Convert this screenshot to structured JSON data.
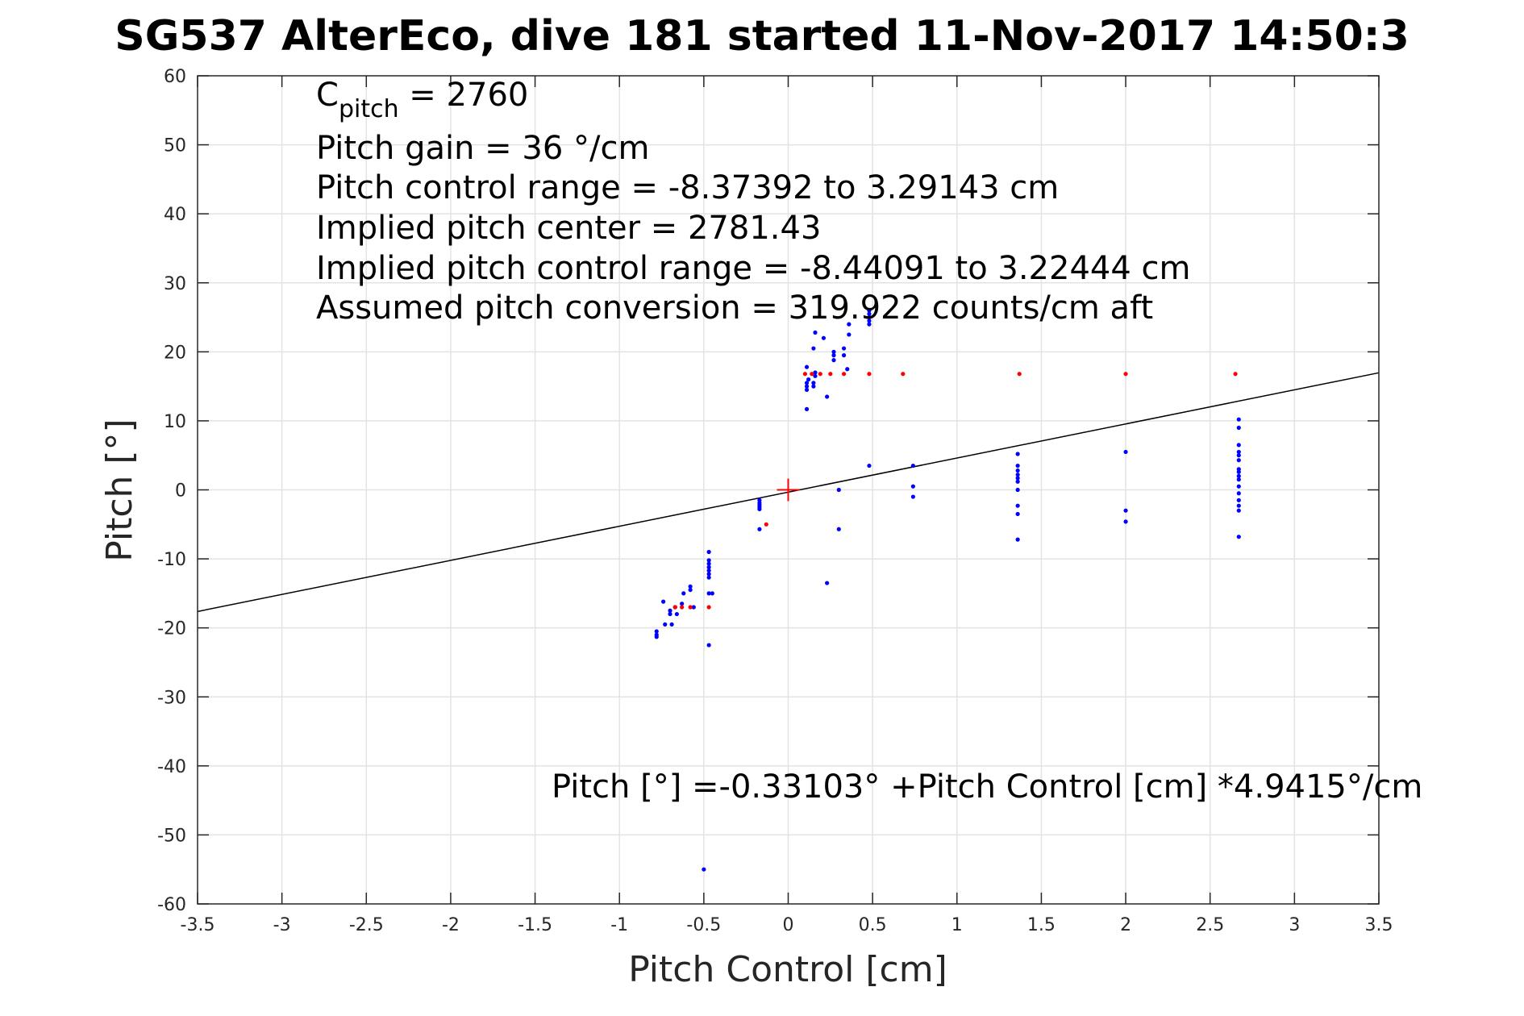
{
  "chart_data": {
    "type": "scatter",
    "title": "SG537 AlterEco, dive 181 started 11-Nov-2017 14:50:3",
    "xlabel": "Pitch Control [cm]",
    "ylabel": "Pitch [°]",
    "xlim": [
      -3.5,
      3.5
    ],
    "ylim": [
      -60,
      60
    ],
    "xticks": [
      "-3.5",
      "-3",
      "-2.5",
      "-2",
      "-1.5",
      "-1",
      "-0.5",
      "0",
      "0.5",
      "1",
      "1.5",
      "2",
      "2.5",
      "3",
      "3.5"
    ],
    "yticks": [
      "60",
      "50",
      "40",
      "30",
      "20",
      "10",
      "0",
      "-10",
      "-20",
      "-30",
      "-40",
      "-50",
      "-60"
    ],
    "grid": true,
    "annotations": {
      "c_pitch_prefix": "C",
      "c_pitch_sub": "pitch",
      "c_pitch_value": " = 2760",
      "pitch_gain": "Pitch gain = 36 °/cm",
      "control_range": "Pitch control range = -8.37392 to 3.29143 cm",
      "implied_center": "Implied pitch center = 2781.43",
      "implied_range": "Implied pitch control range = -8.44091 to 3.22444 cm",
      "assumed_conversion": "Assumed pitch conversion = 319.922 counts/cm aft",
      "fit_equation": "Pitch [°] =-0.33103° +Pitch Control [cm] *4.9415°/cm"
    },
    "fit_line": {
      "intercept": -0.33103,
      "slope": 4.9415,
      "color": "#000000"
    },
    "center_marker": {
      "x": 0,
      "y": 0,
      "color": "#ff0000"
    },
    "series": [
      {
        "color": "#0000ff",
        "points": [
          [
            -0.78,
            -20.5
          ],
          [
            -0.78,
            -21.0
          ],
          [
            -0.78,
            -21.3
          ],
          [
            -0.74,
            -16.2
          ],
          [
            -0.73,
            -19.5
          ],
          [
            -0.7,
            -17.5
          ],
          [
            -0.7,
            -18.0
          ],
          [
            -0.69,
            -19.5
          ],
          [
            -0.67,
            -17.0
          ],
          [
            -0.66,
            -18.0
          ],
          [
            -0.63,
            -16.5
          ],
          [
            -0.62,
            -15.0
          ],
          [
            -0.58,
            -14.0
          ],
          [
            -0.58,
            -14.5
          ],
          [
            -0.56,
            -17.0
          ],
          [
            -0.47,
            -9.0
          ],
          [
            -0.47,
            -10.2
          ],
          [
            -0.47,
            -10.7
          ],
          [
            -0.47,
            -11.2
          ],
          [
            -0.47,
            -11.7
          ],
          [
            -0.47,
            -12.2
          ],
          [
            -0.47,
            -12.7
          ],
          [
            -0.47,
            -15.0
          ],
          [
            -0.45,
            -15.0
          ],
          [
            -0.47,
            -22.5
          ],
          [
            -0.5,
            -55.0
          ],
          [
            -0.17,
            -1.5
          ],
          [
            -0.17,
            -1.9
          ],
          [
            -0.17,
            -2.2
          ],
          [
            -0.17,
            -2.5
          ],
          [
            -0.17,
            -2.8
          ],
          [
            -0.17,
            -5.7
          ],
          [
            0.11,
            11.7
          ],
          [
            0.11,
            14.5
          ],
          [
            0.11,
            15.0
          ],
          [
            0.11,
            15.5
          ],
          [
            0.12,
            16.0
          ],
          [
            0.11,
            17.8
          ],
          [
            0.15,
            15.0
          ],
          [
            0.15,
            15.5
          ],
          [
            0.16,
            16.5
          ],
          [
            0.16,
            17.0
          ],
          [
            0.15,
            20.5
          ],
          [
            0.16,
            22.8
          ],
          [
            0.21,
            22.0
          ],
          [
            0.23,
            13.5
          ],
          [
            0.27,
            18.8
          ],
          [
            0.27,
            19.5
          ],
          [
            0.27,
            20.0
          ],
          [
            0.33,
            19.5
          ],
          [
            0.33,
            20.5
          ],
          [
            0.35,
            17.5
          ],
          [
            0.36,
            22.5
          ],
          [
            0.36,
            24.0
          ],
          [
            0.48,
            24.0
          ],
          [
            0.48,
            24.5
          ],
          [
            0.48,
            25.0
          ],
          [
            0.48,
            25.5
          ],
          [
            0.48,
            26.0
          ],
          [
            0.48,
            3.5
          ],
          [
            0.3,
            0.0
          ],
          [
            0.3,
            -5.7
          ],
          [
            0.23,
            -13.5
          ],
          [
            0.74,
            3.5
          ],
          [
            0.74,
            0.5
          ],
          [
            0.74,
            -1.0
          ],
          [
            1.36,
            5.2
          ],
          [
            1.36,
            3.5
          ],
          [
            1.36,
            2.8
          ],
          [
            1.36,
            2.2
          ],
          [
            1.36,
            1.7
          ],
          [
            1.36,
            1.2
          ],
          [
            1.36,
            0.0
          ],
          [
            1.36,
            -2.3
          ],
          [
            1.36,
            -3.5
          ],
          [
            1.36,
            -7.2
          ],
          [
            2.0,
            5.5
          ],
          [
            2.0,
            -3.0
          ],
          [
            2.0,
            -4.6
          ],
          [
            2.67,
            10.2
          ],
          [
            2.67,
            9.0
          ],
          [
            2.67,
            6.5
          ],
          [
            2.67,
            5.5
          ],
          [
            2.67,
            5.0
          ],
          [
            2.67,
            4.3
          ],
          [
            2.67,
            3.0
          ],
          [
            2.67,
            2.6
          ],
          [
            2.67,
            2.0
          ],
          [
            2.67,
            1.5
          ],
          [
            2.67,
            0.5
          ],
          [
            2.67,
            -0.5
          ],
          [
            2.67,
            -1.5
          ],
          [
            2.67,
            -2.3
          ],
          [
            2.67,
            -3.0
          ],
          [
            2.67,
            -6.8
          ]
        ]
      },
      {
        "color": "#ff0000",
        "points": [
          [
            -0.67,
            -17.0
          ],
          [
            -0.63,
            -17.0
          ],
          [
            -0.58,
            -17.0
          ],
          [
            -0.47,
            -17.0
          ],
          [
            -0.13,
            -5.0
          ],
          [
            0.1,
            16.8
          ],
          [
            0.14,
            16.8
          ],
          [
            0.19,
            16.8
          ],
          [
            0.25,
            16.8
          ],
          [
            0.33,
            16.8
          ],
          [
            0.48,
            16.8
          ],
          [
            0.68,
            16.8
          ],
          [
            1.37,
            16.8
          ],
          [
            2.0,
            16.8
          ],
          [
            2.65,
            16.8
          ]
        ]
      }
    ]
  }
}
